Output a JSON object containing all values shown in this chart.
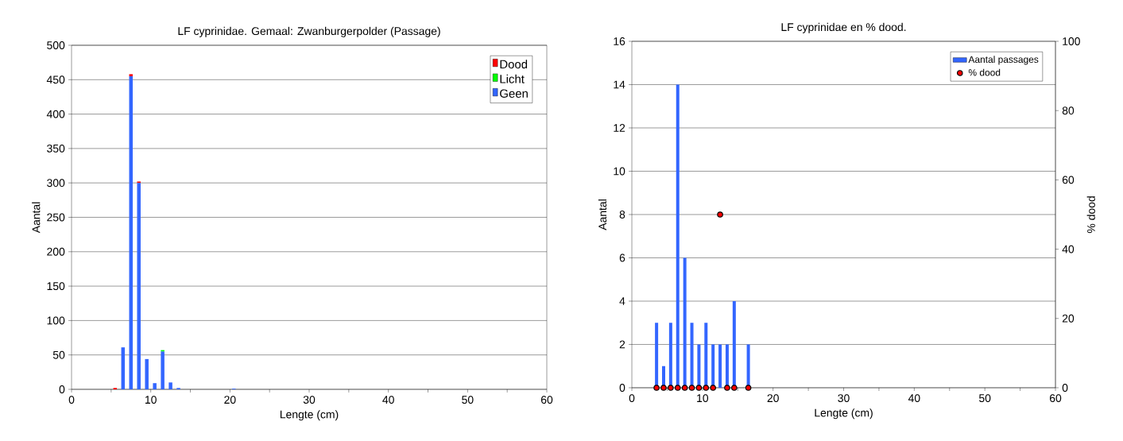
{
  "chart_data": [
    {
      "type": "bar",
      "title": "LF  cyprinidae. Gemaal:  Zwanburgerpolder (Passage)",
      "xlabel": "Lengte (cm)",
      "ylabel": "Aantal",
      "stacked": true,
      "x": [
        5.5,
        6.5,
        7.5,
        8.5,
        9.5,
        10.5,
        11.5,
        12.5,
        13.5,
        20.5
      ],
      "series": [
        {
          "name": "Geen",
          "color": "#3366ff",
          "values": [
            0,
            61,
            455,
            300,
            44,
            9,
            55,
            10,
            2,
            1
          ]
        },
        {
          "name": "Licht",
          "color": "#00ff00",
          "values": [
            0,
            0,
            0,
            0,
            0,
            0,
            2,
            0,
            0,
            0
          ]
        },
        {
          "name": "Dood",
          "color": "#ff0000",
          "values": [
            2,
            0,
            3,
            2,
            0,
            0,
            0,
            0,
            0,
            0
          ]
        }
      ],
      "xlim": [
        0,
        60
      ],
      "xticks": [
        0,
        {
          "value": 5,
          "label": null
        },
        10,
        {
          "value": 15,
          "label": null
        },
        20,
        {
          "value": 25,
          "label": null
        },
        30,
        {
          "value": 35,
          "label": null
        },
        40,
        {
          "value": 45,
          "label": null
        },
        50,
        {
          "value": 55,
          "label": null
        },
        60
      ],
      "ylim": [
        0,
        500
      ],
      "yticks": [
        0,
        50,
        100,
        150,
        200,
        250,
        300,
        350,
        400,
        450,
        500
      ],
      "grid": "y",
      "legend": "top right"
    },
    {
      "type": "bar",
      "title": "LF cyprinidae en % dood.",
      "xlabel": "Lengte (cm)",
      "ylabel": "Aantal",
      "y2label": "% dood",
      "x": [
        3.5,
        4.5,
        5.5,
        6.5,
        7.5,
        8.5,
        9.5,
        10.5,
        11.5,
        12.5,
        13.5,
        14.5,
        16.5
      ],
      "series": [
        {
          "name": "Aantal passages",
          "color": "#3366ff",
          "values": [
            3,
            1,
            3,
            14,
            6,
            3,
            2,
            3,
            2,
            2,
            2,
            4,
            2
          ]
        },
        {
          "name": "% dood",
          "type": "scatter",
          "axis": "y2",
          "marker": "circle",
          "color": "#ff0000",
          "values": [
            0,
            0,
            0,
            0,
            0,
            0,
            0,
            0,
            0,
            50,
            0,
            0,
            0
          ]
        }
      ],
      "xlim": [
        0,
        60
      ],
      "xticks": [
        0,
        {
          "value": 5,
          "label": null
        },
        10,
        {
          "value": 15,
          "label": null
        },
        20,
        {
          "value": 25,
          "label": null
        },
        30,
        {
          "value": 35,
          "label": null
        },
        40,
        {
          "value": 45,
          "label": null
        },
        50,
        {
          "value": 55,
          "label": null
        },
        60
      ],
      "ylim": [
        0,
        16
      ],
      "yticks": [
        0,
        2,
        4,
        6,
        8,
        10,
        12,
        14,
        16
      ],
      "y2lim": [
        0,
        100
      ],
      "y2ticks": [
        0,
        20,
        40,
        60,
        80,
        100
      ],
      "grid": "y",
      "legend": "top right"
    }
  ]
}
